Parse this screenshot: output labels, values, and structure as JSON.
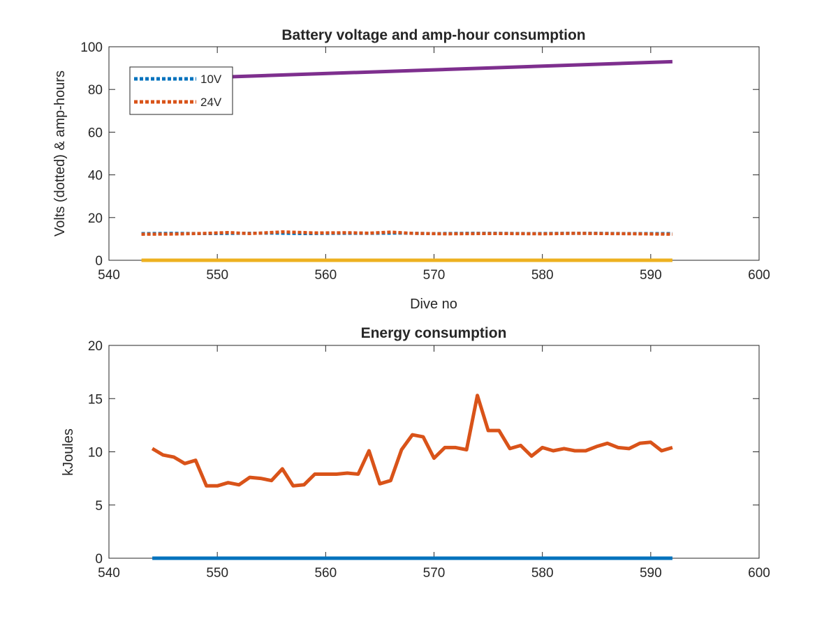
{
  "chart_data": [
    {
      "type": "line",
      "title": "Battery voltage and amp-hour consumption",
      "xlabel": "Dive no",
      "ylabel": "Volts (dotted) & amp-hours",
      "xlim": [
        540,
        600
      ],
      "ylim": [
        0,
        100
      ],
      "xticks": [
        540,
        550,
        560,
        570,
        580,
        590,
        600
      ],
      "yticks": [
        0,
        20,
        40,
        60,
        80,
        100
      ],
      "grid": false,
      "legend_position": "top-left",
      "series": [
        {
          "name": "10V",
          "style": "dotted",
          "color": "#0072BD",
          "x": [
            543,
            546,
            549,
            552,
            555,
            558,
            561,
            564,
            567,
            570,
            573,
            576,
            579,
            582,
            585,
            588,
            592
          ],
          "y": [
            12.5,
            12.6,
            12.5,
            12.6,
            12.7,
            12.5,
            12.6,
            12.6,
            12.7,
            12.5,
            12.6,
            12.6,
            12.5,
            12.6,
            12.6,
            12.5,
            12.5
          ]
        },
        {
          "name": "24V",
          "style": "dotted",
          "color": "#D95319",
          "x": [
            543,
            546,
            549,
            551,
            553,
            556,
            559,
            562,
            564,
            566,
            568,
            571,
            574,
            577,
            580,
            583,
            586,
            589,
            592
          ],
          "y": [
            12.2,
            12.3,
            12.6,
            13.0,
            12.5,
            13.3,
            12.8,
            12.9,
            12.7,
            13.2,
            12.6,
            12.4,
            12.5,
            12.5,
            12.4,
            12.6,
            12.5,
            12.4,
            12.2
          ]
        },
        {
          "style": "solid",
          "color": "#EDB120",
          "x": [
            543,
            592
          ],
          "y": [
            0,
            0
          ]
        },
        {
          "style": "solid",
          "color": "#7E2F8E",
          "x": [
            543,
            592
          ],
          "y": [
            84.5,
            93.0
          ]
        }
      ]
    },
    {
      "type": "line",
      "title": "Energy consumption",
      "xlabel": "",
      "ylabel": "kJoules",
      "xlim": [
        540,
        600
      ],
      "ylim": [
        0,
        20
      ],
      "xticks": [
        540,
        550,
        560,
        570,
        580,
        590,
        600
      ],
      "yticks": [
        0,
        5,
        10,
        15,
        20
      ],
      "grid": false,
      "series": [
        {
          "style": "solid",
          "color": "#D95319",
          "x": [
            544,
            545,
            546,
            547,
            548,
            549,
            550,
            551,
            552,
            553,
            554,
            555,
            556,
            557,
            558,
            559,
            560,
            561,
            562,
            563,
            564,
            565,
            566,
            567,
            568,
            569,
            570,
            571,
            572,
            573,
            574,
            575,
            576,
            577,
            578,
            579,
            580,
            581,
            582,
            583,
            584,
            585,
            586,
            587,
            588,
            589,
            590,
            591,
            592
          ],
          "y": [
            10.3,
            9.7,
            9.5,
            8.9,
            9.2,
            6.8,
            6.8,
            7.1,
            6.9,
            7.6,
            7.5,
            7.3,
            8.4,
            6.8,
            6.9,
            7.9,
            7.9,
            7.9,
            8.0,
            7.9,
            10.1,
            7.0,
            7.3,
            10.2,
            11.6,
            11.4,
            9.4,
            10.4,
            10.4,
            10.2,
            15.3,
            12.0,
            12.0,
            10.3,
            10.6,
            9.6,
            10.4,
            10.1,
            10.3,
            10.1,
            10.1,
            10.5,
            10.8,
            10.4,
            10.3,
            10.8,
            10.9,
            10.1,
            10.4
          ]
        },
        {
          "style": "solid",
          "color": "#0072BD",
          "x": [
            544,
            592
          ],
          "y": [
            0,
            0
          ]
        }
      ]
    }
  ]
}
